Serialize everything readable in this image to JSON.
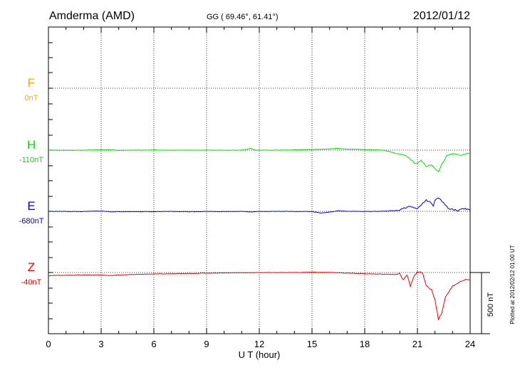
{
  "header": {
    "station": "Amderma (AMD)",
    "coords": "GG ( 69.46°,  61.41°)",
    "date": "2012/01/12"
  },
  "footer": {
    "plotted": "Plotted at 2012/02/12 01:00 UT"
  },
  "chart_data": {
    "type": "line",
    "xlabel": "U T (hour)",
    "xlim": [
      0,
      24
    ],
    "x_ticks": [
      "0",
      "3",
      "6",
      "9",
      "12",
      "15",
      "18",
      "21",
      "24"
    ],
    "scale_bar": "500 nT",
    "grid": "dotted",
    "components": [
      {
        "name": "F",
        "baseline": "0nT",
        "color": "#ffa500",
        "points": []
      },
      {
        "name": "H",
        "baseline": "-110nT",
        "color": "#00e000",
        "points": [
          [
            0,
            0
          ],
          [
            1,
            -2
          ],
          [
            2,
            0
          ],
          [
            3,
            3
          ],
          [
            3.5,
            3
          ],
          [
            4,
            -2
          ],
          [
            5,
            0
          ],
          [
            6,
            1
          ],
          [
            7,
            -1
          ],
          [
            8,
            0
          ],
          [
            9,
            -1
          ],
          [
            10,
            0
          ],
          [
            11,
            0
          ],
          [
            11.5,
            15
          ],
          [
            11.8,
            -3
          ],
          [
            12,
            0
          ],
          [
            13,
            0
          ],
          [
            14,
            2
          ],
          [
            15,
            5
          ],
          [
            16,
            10
          ],
          [
            16.5,
            15
          ],
          [
            17,
            8
          ],
          [
            18,
            5
          ],
          [
            19,
            0
          ],
          [
            19.7,
            -20
          ],
          [
            20,
            -35
          ],
          [
            20.3,
            -40
          ],
          [
            20.6,
            -70
          ],
          [
            20.8,
            -100
          ],
          [
            21,
            -110
          ],
          [
            21.2,
            -80
          ],
          [
            21.5,
            -130
          ],
          [
            21.8,
            -120
          ],
          [
            22,
            -150
          ],
          [
            22.2,
            -175
          ],
          [
            22.4,
            -110
          ],
          [
            22.7,
            -40
          ],
          [
            23,
            -30
          ],
          [
            23.5,
            -40
          ],
          [
            24,
            -25
          ]
        ]
      },
      {
        "name": "E",
        "baseline": "-680nT",
        "color": "#0000cc",
        "points": [
          [
            0,
            0
          ],
          [
            1,
            -1
          ],
          [
            2,
            -2
          ],
          [
            3,
            3
          ],
          [
            3.5,
            -4
          ],
          [
            4,
            -3
          ],
          [
            5,
            -2
          ],
          [
            6,
            -3
          ],
          [
            7,
            -1
          ],
          [
            8,
            -3
          ],
          [
            9,
            -1
          ],
          [
            10,
            -2
          ],
          [
            11,
            0
          ],
          [
            11.5,
            -5
          ],
          [
            12,
            -1
          ],
          [
            13,
            0
          ],
          [
            14,
            -1
          ],
          [
            15,
            -2
          ],
          [
            15.5,
            -14
          ],
          [
            16,
            -6
          ],
          [
            16.5,
            5
          ],
          [
            17,
            0
          ],
          [
            18,
            -1
          ],
          [
            19,
            0
          ],
          [
            19.5,
            5
          ],
          [
            20,
            10
          ],
          [
            20.3,
            30
          ],
          [
            20.6,
            40
          ],
          [
            20.8,
            30
          ],
          [
            21,
            20
          ],
          [
            21.3,
            65
          ],
          [
            21.5,
            90
          ],
          [
            21.7,
            75
          ],
          [
            21.9,
            45
          ],
          [
            22,
            85
          ],
          [
            22.2,
            110
          ],
          [
            22.4,
            80
          ],
          [
            22.6,
            50
          ],
          [
            22.8,
            20
          ],
          [
            23,
            15
          ],
          [
            23.3,
            5
          ],
          [
            23.6,
            25
          ],
          [
            24,
            10
          ]
        ]
      },
      {
        "name": "Z",
        "baseline": "-40nT",
        "color": "#ee0000",
        "points": [
          [
            0,
            -25
          ],
          [
            1,
            -22
          ],
          [
            2,
            -20
          ],
          [
            3,
            -20
          ],
          [
            3.5,
            -25
          ],
          [
            4,
            -20
          ],
          [
            5,
            -15
          ],
          [
            6,
            -12
          ],
          [
            7,
            -10
          ],
          [
            8,
            -8
          ],
          [
            9,
            -5
          ],
          [
            10,
            -3
          ],
          [
            11,
            -2
          ],
          [
            12,
            -1
          ],
          [
            13,
            0
          ],
          [
            14,
            0
          ],
          [
            15,
            3
          ],
          [
            16,
            1
          ],
          [
            17,
            -5
          ],
          [
            18,
            -10
          ],
          [
            19,
            -13
          ],
          [
            19.5,
            -15
          ],
          [
            20,
            -10
          ],
          [
            20.2,
            -60
          ],
          [
            20.4,
            -20
          ],
          [
            20.6,
            -110
          ],
          [
            20.8,
            -30
          ],
          [
            21,
            5
          ],
          [
            21.3,
            0
          ],
          [
            21.5,
            -110
          ],
          [
            21.8,
            -140
          ],
          [
            22,
            -220
          ],
          [
            22.2,
            -380
          ],
          [
            22.4,
            -320
          ],
          [
            22.6,
            -200
          ],
          [
            22.8,
            -150
          ],
          [
            23,
            -110
          ],
          [
            23.3,
            -90
          ],
          [
            23.6,
            -60
          ],
          [
            24,
            -60
          ]
        ]
      }
    ]
  }
}
